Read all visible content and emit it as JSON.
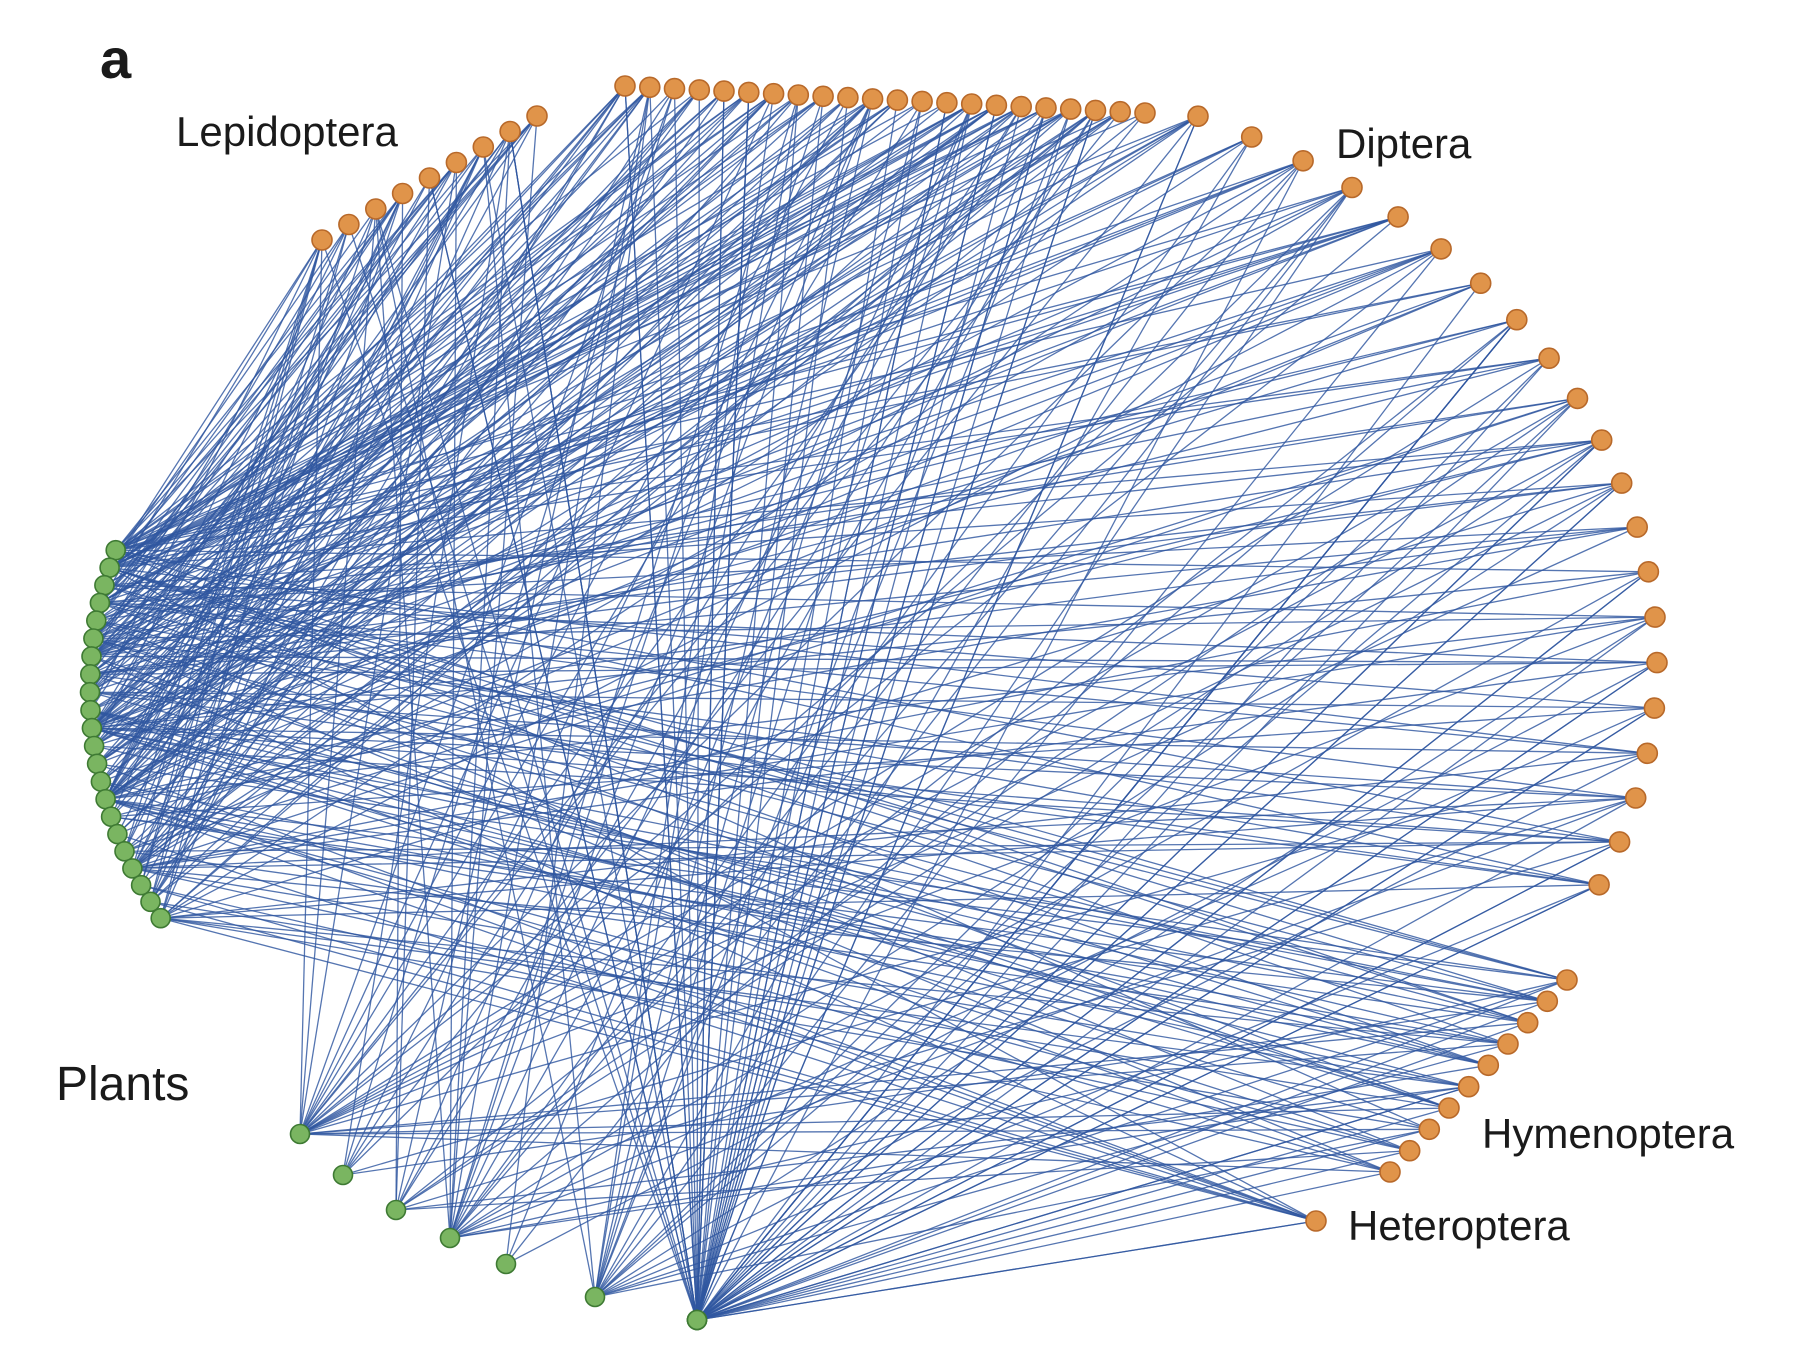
{
  "panel_label": "a",
  "groups": {
    "lepidoptera": "Lepidoptera",
    "diptera": "Diptera",
    "hymenoptera": "Hymenoptera",
    "heteroptera": "Heteroptera",
    "plants": "Plants"
  },
  "colors": {
    "edge": "#2f57a0",
    "pollinator_fill": "#e0944a",
    "pollinator_stroke": "#b8692a",
    "plant_fill": "#7ab561",
    "plant_stroke": "#3e7a33"
  },
  "network": {
    "type": "bipartite-circular-network",
    "node_counts": {
      "lepidoptera": 9,
      "diptera": 43,
      "hymenoptera": 10,
      "heteroptera": 1,
      "plants": 32
    }
  }
}
